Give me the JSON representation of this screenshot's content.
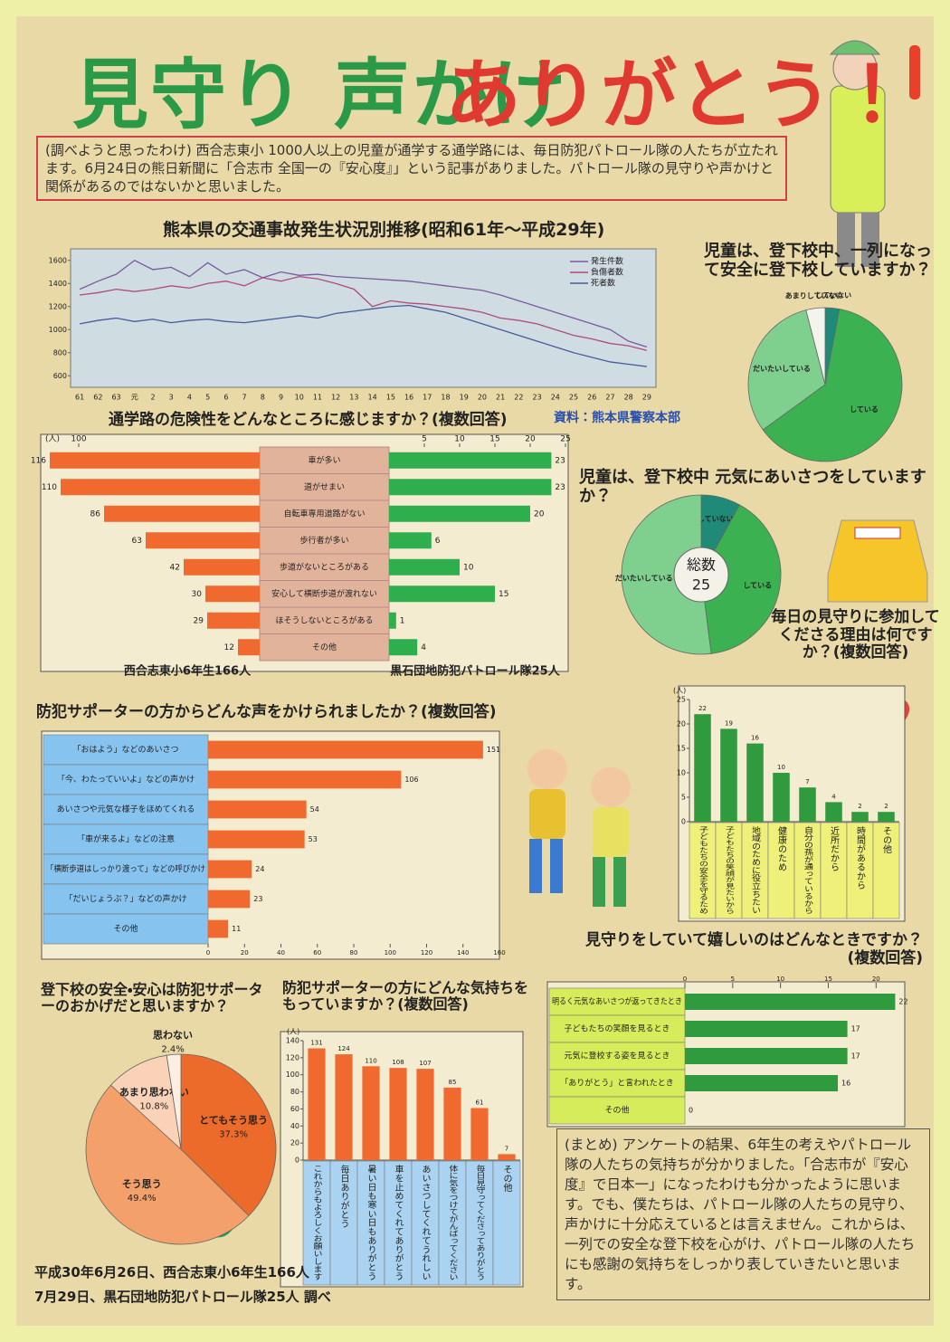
{
  "poster": {
    "title_green": "見守り 声かけ",
    "title_red": "ありがとう！",
    "intro": "(調べようと思ったわけ) 西合志東小 1000人以上の児童が通学する通学路には、毎日防犯パトロール隊の人たちが立たれます。6月24日の熊日新聞に「合志市 全国一の『安心度』」という記事がありました。パトロール隊の見守りや声かけと関係があるのではないかと思いました。",
    "summary": "(まとめ) アンケートの結果、6年生の考えやパトロール隊の人たちの気持ちが分かりました。「合志市が『安心度』で日本一」になったわけも分かったように思います。でも、僕たちは、パトロール隊の人たちの見守り、声かけに十分応えているとは言えません。これからは、一列での安全な登下校を心がけ、パトロール隊の人たちにも感謝の気持ちをしっかり表していきたいと思います。",
    "footer": [
      "平成30年6月26日、西合志東小6年生166人",
      "7月29日、黒石団地防犯パトロール隊25人 調べ"
    ]
  },
  "chart_data": [
    {
      "type": "line",
      "title": "熊本県の交通事故発生状況別推移(昭和61年～平成29年)",
      "source": "資料：熊本県警察本部",
      "x": [
        "61",
        "62",
        "63",
        "元",
        "2",
        "3",
        "4",
        "5",
        "6",
        "7",
        "8",
        "9",
        "10",
        "11",
        "12",
        "13",
        "14",
        "15",
        "16",
        "17",
        "18",
        "19",
        "20",
        "21",
        "22",
        "23",
        "24",
        "25",
        "26",
        "27",
        "28",
        "29"
      ],
      "ylim": [
        500,
        1700
      ],
      "yticks": [
        600,
        800,
        1000,
        1200,
        1400,
        1600
      ],
      "series": [
        {
          "name": "発生件数",
          "color": "#7a5aa0",
          "values": [
            1350,
            1420,
            1480,
            1600,
            1520,
            1540,
            1460,
            1580,
            1480,
            1520,
            1450,
            1500,
            1470,
            1480,
            1460,
            1450,
            1440,
            1430,
            1420,
            1400,
            1380,
            1360,
            1340,
            1300,
            1250,
            1200,
            1150,
            1100,
            1050,
            1000,
            900,
            850
          ]
        },
        {
          "name": "負傷者数",
          "color": "#b04a7a",
          "values": [
            1300,
            1320,
            1350,
            1330,
            1350,
            1380,
            1360,
            1400,
            1420,
            1380,
            1450,
            1420,
            1460,
            1440,
            1400,
            1350,
            1200,
            1250,
            1230,
            1220,
            1200,
            1180,
            1150,
            1100,
            1080,
            1050,
            1000,
            950,
            920,
            880,
            860,
            820
          ]
        },
        {
          "name": "死者数",
          "color": "#4a5a9a",
          "values": [
            1050,
            1080,
            1100,
            1070,
            1090,
            1060,
            1080,
            1090,
            1070,
            1060,
            1080,
            1100,
            1120,
            1100,
            1140,
            1160,
            1180,
            1200,
            1210,
            1180,
            1150,
            1100,
            1050,
            1000,
            950,
            900,
            850,
            800,
            760,
            720,
            700,
            680
          ]
        }
      ]
    },
    {
      "type": "butterfly",
      "title": "通学路の危険性をどんなところに感じますか？(複数回答)",
      "unit": "(人)",
      "categories": [
        "車が多い",
        "道がせまい",
        "自転車専用道路がない",
        "歩行者が多い",
        "歩道がないところがある",
        "安心して横断歩道が渡れない",
        "ほそうしないところがある",
        "その他"
      ],
      "series": [
        {
          "name": "西合志東小6年生166人",
          "color": "#f06a30",
          "values": [
            116,
            110,
            86,
            63,
            42,
            30,
            29,
            12
          ],
          "xlim": [
            0,
            120
          ],
          "xticks": [
            100
          ]
        },
        {
          "name": "黒石団地防犯パトロール隊25人",
          "color": "#2fae4e",
          "values": [
            23,
            23,
            20,
            6,
            10,
            15,
            1,
            4
          ],
          "xlim": [
            0,
            25
          ],
          "xticks": [
            5,
            10,
            15,
            20,
            25
          ]
        }
      ]
    },
    {
      "type": "pie",
      "title": "児童は、登下校中、一列になって安全に登下校していますか？",
      "categories": [
        "していない",
        "している",
        "だいたいしている",
        "あまりしていない"
      ],
      "values": [
        3,
        62,
        31,
        4
      ],
      "colors": [
        "#1f8a78",
        "#3bb152",
        "#7fcf8f",
        "#f4f4ee"
      ]
    },
    {
      "type": "donut",
      "title": "児童は、登下校中 元気にあいさつをしていますか？",
      "center_label": "総数",
      "total": 25,
      "categories": [
        "していない",
        "している",
        "だいたいしている"
      ],
      "values": [
        2,
        10,
        13
      ],
      "colors": [
        "#1f8a78",
        "#3bb152",
        "#7fcf8f"
      ]
    },
    {
      "type": "vbar",
      "title": "毎日の見守りに参加してくださる理由は何ですか？(複数回答)",
      "unit": "(人)",
      "categories": [
        "子どもたちの安全を守るため",
        "子どもたちの笑顔が見たいから",
        "地域のために役立ちたい",
        "健康のため",
        "自分の孫が通っているから",
        "近所だから",
        "時間があるから",
        "その他"
      ],
      "values": [
        22,
        19,
        16,
        10,
        7,
        4,
        2,
        2
      ],
      "color": "#2f9a3e",
      "ylim": [
        0,
        25
      ],
      "yticks": [
        0,
        5,
        10,
        15,
        20,
        25
      ]
    },
    {
      "type": "hbar",
      "title": "防犯サポーターの方からどんな声をかけられましたか？(複数回答)",
      "categories": [
        "「おはよう」などのあいさつ",
        "「今、わたっていいよ」などの声かけ",
        "あいさつや元気な様子をほめてくれる",
        "「車が来るよ」などの注意",
        "「横断歩道はしっかり渡って」などの呼びかけ",
        "「だいじょうぶ？」などの声かけ",
        "その他"
      ],
      "values": [
        151,
        106,
        54,
        53,
        24,
        23,
        11
      ],
      "color": "#f06a30",
      "xlim": [
        0,
        160
      ],
      "xticks": [
        0,
        20,
        40,
        60,
        80,
        100,
        120,
        140,
        160
      ]
    },
    {
      "type": "pie",
      "title": "登下校の安全・安心は防犯サポーターのおかげだと思いますか？",
      "categories": [
        "とてもそう思う",
        "そう思う",
        "あまり思わない",
        "思わない"
      ],
      "values": [
        37.3,
        49.4,
        10.8,
        2.4
      ],
      "value_labels": [
        "37.3%",
        "49.4%",
        "10.8%",
        "2.4%"
      ],
      "colors": [
        "#ec6a2a",
        "#f3a06a",
        "#f9d2b8",
        "#fbeee2"
      ]
    },
    {
      "type": "vbar",
      "title": "防犯サポーターの方にどんな気持ちをもっていますか？(複数回答)",
      "unit": "(人)",
      "categories": [
        "これからもよろしくお願いします",
        "毎日ありがとう",
        "暑い日も寒い日もありがとう",
        "車を止めてくれてありがとう",
        "あいさつしてくれてうれしい",
        "体に気をつけてがんばってください",
        "毎日見守ってくださってありがとう",
        "その他"
      ],
      "values": [
        131,
        124,
        110,
        108,
        107,
        85,
        61,
        7
      ],
      "color": "#f06a30",
      "ylim": [
        0,
        140
      ],
      "yticks": [
        0,
        20,
        40,
        60,
        80,
        100,
        120,
        140
      ]
    },
    {
      "type": "hbar",
      "title": "見守りをしていて嬉しいのはどんなときですか？(複数回答)",
      "categories": [
        "明るく元気なあいさつが返ってきたとき",
        "子どもたちの笑顔を見るとき",
        "元気に登校する姿を見るとき",
        "「ありがとう」と言われたとき",
        "その他"
      ],
      "values": [
        22,
        17,
        17,
        16,
        0
      ],
      "color": "#2f9a3e",
      "xlim": [
        0,
        23
      ],
      "xticks": [
        0,
        5,
        10,
        15,
        20
      ]
    }
  ]
}
